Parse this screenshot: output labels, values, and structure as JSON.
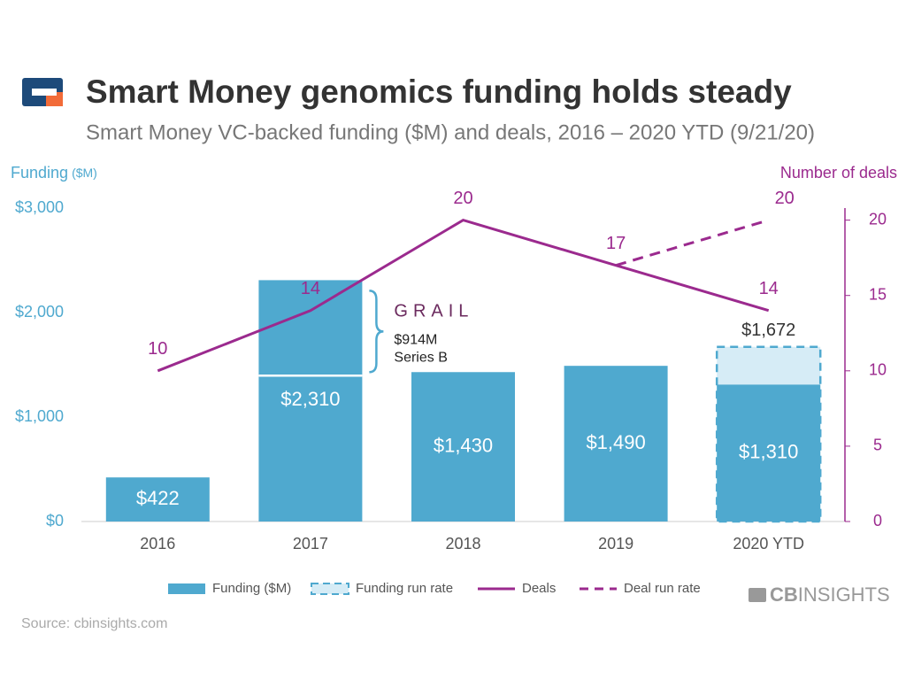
{
  "chart_data": {
    "type": "bar",
    "title": "Smart Money genomics funding holds steady",
    "subtitle": "Smart Money VC-backed funding ($M) and deals, 2016 – 2020 YTD (9/21/20)",
    "y_label": "Funding",
    "y_label_unit": "($M)",
    "y2_label": "Number of deals",
    "source": "Source: cbinsights.com",
    "brand": [
      "CB",
      "INSIGHTS"
    ],
    "categories": [
      "2016",
      "2017",
      "2018",
      "2019",
      "2020 YTD"
    ],
    "ylim": [
      0,
      3000
    ],
    "yticks": [
      {
        "value": 0,
        "label": "$0"
      },
      {
        "value": 1000,
        "label": "$1,000"
      },
      {
        "value": 2000,
        "label": "$2,000"
      },
      {
        "value": 3000,
        "label": "$3,000"
      }
    ],
    "y2lim": [
      0,
      20.8
    ],
    "y2ticks": [
      0,
      5,
      10,
      15,
      20
    ],
    "series": [
      {
        "name": "Funding ($M)",
        "type": "bar",
        "color": "#4fa9cf",
        "values": [
          422,
          2310,
          1430,
          1490,
          1310
        ],
        "value_labels": [
          "$422",
          "$2,310",
          "$1,430",
          "$1,490",
          "$1,310"
        ],
        "annotations": [
          null,
          {
            "label": "GRAIL",
            "value": 914,
            "value_label": "$914M",
            "note": "Series B"
          },
          null,
          null,
          null
        ]
      },
      {
        "name": "Funding run rate",
        "type": "bar_outline",
        "color": "#d6ecf6",
        "stroke": "#4fa9cf",
        "values": [
          null,
          null,
          null,
          null,
          1672
        ],
        "value_labels": [
          null,
          null,
          null,
          null,
          "$1,672"
        ]
      },
      {
        "name": "Deals",
        "type": "line",
        "axis": "y2",
        "color": "#9b2a8e",
        "values": [
          10,
          14,
          20,
          17,
          14
        ]
      },
      {
        "name": "Deal run rate",
        "type": "dashed_line",
        "axis": "y2",
        "color": "#9b2a8e",
        "values": [
          null,
          null,
          null,
          17,
          20
        ],
        "value_labels": [
          null,
          null,
          null,
          null,
          "20"
        ]
      }
    ]
  }
}
